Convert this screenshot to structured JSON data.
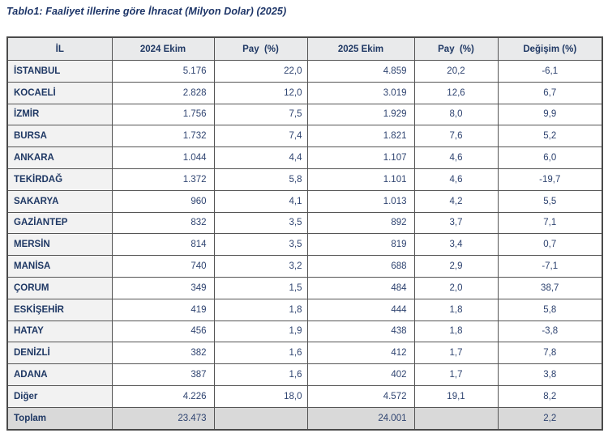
{
  "title": "Tablo1: Faaliyet illerine göre İhracat (Milyon Dolar) (2025)",
  "table": {
    "columns": [
      "İL",
      "2024 Ekim",
      "Pay  (%)",
      "2025 Ekim",
      "Pay  (%)",
      "Değişim (%)"
    ],
    "rows": [
      {
        "il": "İSTANBUL",
        "v2024": "5.176",
        "pay2024": "22,0",
        "v2025": "4.859",
        "pay2025": "20,2",
        "degisim": "-6,1"
      },
      {
        "il": "KOCAELİ",
        "v2024": "2.828",
        "pay2024": "12,0",
        "v2025": "3.019",
        "pay2025": "12,6",
        "degisim": "6,7"
      },
      {
        "il": "İZMİR",
        "v2024": "1.756",
        "pay2024": "7,5",
        "v2025": "1.929",
        "pay2025": "8,0",
        "degisim": "9,9"
      },
      {
        "il": "BURSA",
        "v2024": "1.732",
        "pay2024": "7,4",
        "v2025": "1.821",
        "pay2025": "7,6",
        "degisim": "5,2"
      },
      {
        "il": "ANKARA",
        "v2024": "1.044",
        "pay2024": "4,4",
        "v2025": "1.107",
        "pay2025": "4,6",
        "degisim": "6,0"
      },
      {
        "il": "TEKİRDAĞ",
        "v2024": "1.372",
        "pay2024": "5,8",
        "v2025": "1.101",
        "pay2025": "4,6",
        "degisim": "-19,7"
      },
      {
        "il": "SAKARYA",
        "v2024": "960",
        "pay2024": "4,1",
        "v2025": "1.013",
        "pay2025": "4,2",
        "degisim": "5,5"
      },
      {
        "il": "GAZİANTEP",
        "v2024": "832",
        "pay2024": "3,5",
        "v2025": "892",
        "pay2025": "3,7",
        "degisim": "7,1"
      },
      {
        "il": "MERSİN",
        "v2024": "814",
        "pay2024": "3,5",
        "v2025": "819",
        "pay2025": "3,4",
        "degisim": "0,7"
      },
      {
        "il": "MANİSA",
        "v2024": "740",
        "pay2024": "3,2",
        "v2025": "688",
        "pay2025": "2,9",
        "degisim": "-7,1"
      },
      {
        "il": "ÇORUM",
        "v2024": "349",
        "pay2024": "1,5",
        "v2025": "484",
        "pay2025": "2,0",
        "degisim": "38,7"
      },
      {
        "il": "ESKİŞEHİR",
        "v2024": "419",
        "pay2024": "1,8",
        "v2025": "444",
        "pay2025": "1,8",
        "degisim": "5,8"
      },
      {
        "il": "HATAY",
        "v2024": "456",
        "pay2024": "1,9",
        "v2025": "438",
        "pay2025": "1,8",
        "degisim": "-3,8"
      },
      {
        "il": "DENİZLİ",
        "v2024": "382",
        "pay2024": "1,6",
        "v2025": "412",
        "pay2025": "1,7",
        "degisim": "7,8"
      },
      {
        "il": "ADANA",
        "v2024": "387",
        "pay2024": "1,6",
        "v2025": "402",
        "pay2025": "1,7",
        "degisim": "3,8"
      },
      {
        "il": "Diğer",
        "v2024": "4.226",
        "pay2024": "18,0",
        "v2025": "4.572",
        "pay2025": "19,1",
        "degisim": "8,2"
      }
    ],
    "total": {
      "il": "Toplam",
      "v2024": "23.473",
      "pay2024": "",
      "v2025": "24.001",
      "pay2025": "",
      "degisim": "2,2"
    }
  },
  "colors": {
    "title_text": "#1c3467",
    "header_bg": "#e9eaeb",
    "header_text": "#1f3864",
    "row_label_bg": "#f2f2f2",
    "total_row_bg": "#d9d9d9",
    "cell_text": "#2e4370",
    "border": "#555555"
  }
}
